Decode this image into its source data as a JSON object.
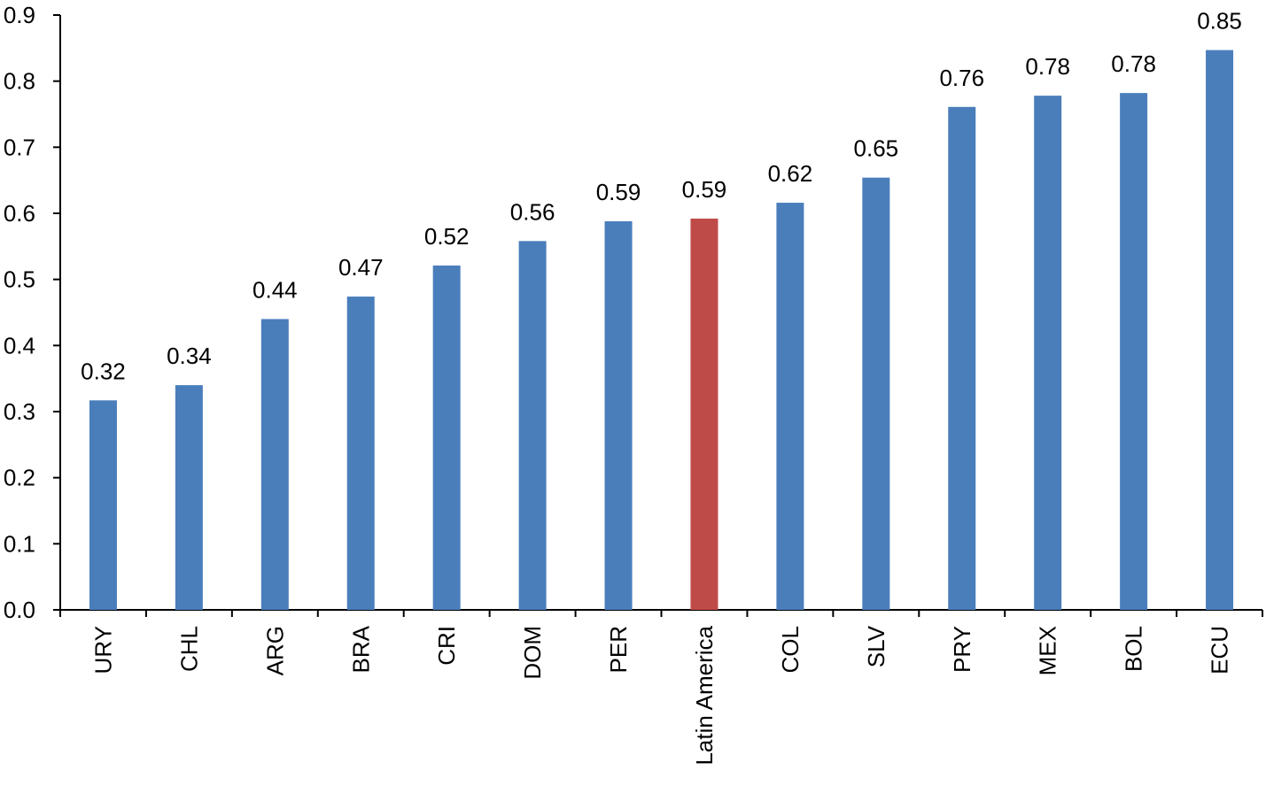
{
  "chart_data": {
    "type": "bar",
    "categories": [
      "URY",
      "CHL",
      "ARG",
      "BRA",
      "CRI",
      "DOM",
      "PER",
      "Latin America",
      "COL",
      "SLV",
      "PRY",
      "MEX",
      "BOL",
      "ECU"
    ],
    "values": [
      0.317,
      0.34,
      0.44,
      0.474,
      0.521,
      0.558,
      0.588,
      0.592,
      0.616,
      0.654,
      0.761,
      0.778,
      0.782,
      0.847
    ],
    "data_labels": [
      "0.32",
      "0.34",
      "0.44",
      "0.47",
      "0.52",
      "0.56",
      "0.59",
      "0.59",
      "0.62",
      "0.65",
      "0.76",
      "0.78",
      "0.78",
      "0.85"
    ],
    "y_ticks": [
      "0.0",
      "0.1",
      "0.2",
      "0.3",
      "0.4",
      "0.5",
      "0.6",
      "0.7",
      "0.8",
      "0.9"
    ],
    "ylim": [
      0,
      0.9
    ],
    "title": "",
    "xlabel": "",
    "ylabel": "",
    "grid": false,
    "colors": {
      "default_bar": "#4a7ebb",
      "highlight_bar": "#be4b48",
      "highlight_category": "Latin America"
    }
  }
}
